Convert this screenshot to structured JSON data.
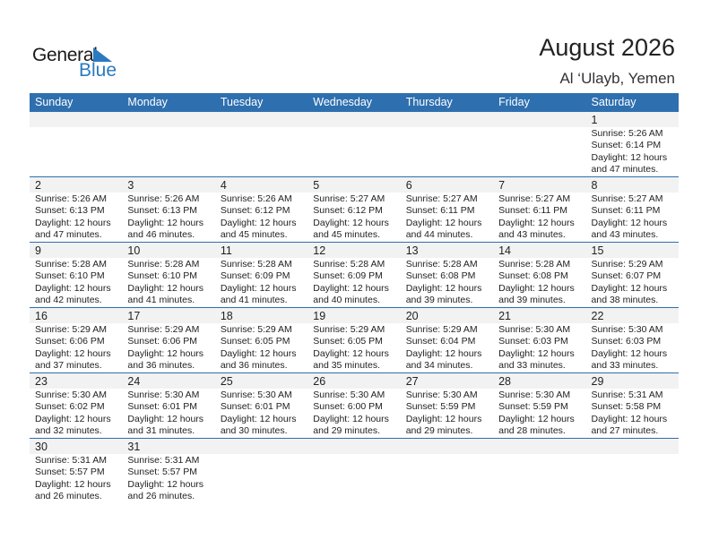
{
  "logo": {
    "text_general": "General",
    "text_blue": "Blue"
  },
  "header": {
    "title": "August 2026",
    "location": "Al ‘Ulayb, Yemen"
  },
  "colors": {
    "accent": "#2e6faf",
    "strip": "#f2f2f2"
  },
  "weekdays": [
    "Sunday",
    "Monday",
    "Tuesday",
    "Wednesday",
    "Thursday",
    "Friday",
    "Saturday"
  ],
  "first_weekday_index": 6,
  "days": [
    {
      "day": "1",
      "sunrise": "Sunrise: 5:26 AM",
      "sunset": "Sunset: 6:14 PM",
      "daylight1": "Daylight: 12 hours",
      "daylight2": "and 47 minutes."
    },
    {
      "day": "2",
      "sunrise": "Sunrise: 5:26 AM",
      "sunset": "Sunset: 6:13 PM",
      "daylight1": "Daylight: 12 hours",
      "daylight2": "and 47 minutes."
    },
    {
      "day": "3",
      "sunrise": "Sunrise: 5:26 AM",
      "sunset": "Sunset: 6:13 PM",
      "daylight1": "Daylight: 12 hours",
      "daylight2": "and 46 minutes."
    },
    {
      "day": "4",
      "sunrise": "Sunrise: 5:26 AM",
      "sunset": "Sunset: 6:12 PM",
      "daylight1": "Daylight: 12 hours",
      "daylight2": "and 45 minutes."
    },
    {
      "day": "5",
      "sunrise": "Sunrise: 5:27 AM",
      "sunset": "Sunset: 6:12 PM",
      "daylight1": "Daylight: 12 hours",
      "daylight2": "and 45 minutes."
    },
    {
      "day": "6",
      "sunrise": "Sunrise: 5:27 AM",
      "sunset": "Sunset: 6:11 PM",
      "daylight1": "Daylight: 12 hours",
      "daylight2": "and 44 minutes."
    },
    {
      "day": "7",
      "sunrise": "Sunrise: 5:27 AM",
      "sunset": "Sunset: 6:11 PM",
      "daylight1": "Daylight: 12 hours",
      "daylight2": "and 43 minutes."
    },
    {
      "day": "8",
      "sunrise": "Sunrise: 5:27 AM",
      "sunset": "Sunset: 6:11 PM",
      "daylight1": "Daylight: 12 hours",
      "daylight2": "and 43 minutes."
    },
    {
      "day": "9",
      "sunrise": "Sunrise: 5:28 AM",
      "sunset": "Sunset: 6:10 PM",
      "daylight1": "Daylight: 12 hours",
      "daylight2": "and 42 minutes."
    },
    {
      "day": "10",
      "sunrise": "Sunrise: 5:28 AM",
      "sunset": "Sunset: 6:10 PM",
      "daylight1": "Daylight: 12 hours",
      "daylight2": "and 41 minutes."
    },
    {
      "day": "11",
      "sunrise": "Sunrise: 5:28 AM",
      "sunset": "Sunset: 6:09 PM",
      "daylight1": "Daylight: 12 hours",
      "daylight2": "and 41 minutes."
    },
    {
      "day": "12",
      "sunrise": "Sunrise: 5:28 AM",
      "sunset": "Sunset: 6:09 PM",
      "daylight1": "Daylight: 12 hours",
      "daylight2": "and 40 minutes."
    },
    {
      "day": "13",
      "sunrise": "Sunrise: 5:28 AM",
      "sunset": "Sunset: 6:08 PM",
      "daylight1": "Daylight: 12 hours",
      "daylight2": "and 39 minutes."
    },
    {
      "day": "14",
      "sunrise": "Sunrise: 5:28 AM",
      "sunset": "Sunset: 6:08 PM",
      "daylight1": "Daylight: 12 hours",
      "daylight2": "and 39 minutes."
    },
    {
      "day": "15",
      "sunrise": "Sunrise: 5:29 AM",
      "sunset": "Sunset: 6:07 PM",
      "daylight1": "Daylight: 12 hours",
      "daylight2": "and 38 minutes."
    },
    {
      "day": "16",
      "sunrise": "Sunrise: 5:29 AM",
      "sunset": "Sunset: 6:06 PM",
      "daylight1": "Daylight: 12 hours",
      "daylight2": "and 37 minutes."
    },
    {
      "day": "17",
      "sunrise": "Sunrise: 5:29 AM",
      "sunset": "Sunset: 6:06 PM",
      "daylight1": "Daylight: 12 hours",
      "daylight2": "and 36 minutes."
    },
    {
      "day": "18",
      "sunrise": "Sunrise: 5:29 AM",
      "sunset": "Sunset: 6:05 PM",
      "daylight1": "Daylight: 12 hours",
      "daylight2": "and 36 minutes."
    },
    {
      "day": "19",
      "sunrise": "Sunrise: 5:29 AM",
      "sunset": "Sunset: 6:05 PM",
      "daylight1": "Daylight: 12 hours",
      "daylight2": "and 35 minutes."
    },
    {
      "day": "20",
      "sunrise": "Sunrise: 5:29 AM",
      "sunset": "Sunset: 6:04 PM",
      "daylight1": "Daylight: 12 hours",
      "daylight2": "and 34 minutes."
    },
    {
      "day": "21",
      "sunrise": "Sunrise: 5:30 AM",
      "sunset": "Sunset: 6:03 PM",
      "daylight1": "Daylight: 12 hours",
      "daylight2": "and 33 minutes."
    },
    {
      "day": "22",
      "sunrise": "Sunrise: 5:30 AM",
      "sunset": "Sunset: 6:03 PM",
      "daylight1": "Daylight: 12 hours",
      "daylight2": "and 33 minutes."
    },
    {
      "day": "23",
      "sunrise": "Sunrise: 5:30 AM",
      "sunset": "Sunset: 6:02 PM",
      "daylight1": "Daylight: 12 hours",
      "daylight2": "and 32 minutes."
    },
    {
      "day": "24",
      "sunrise": "Sunrise: 5:30 AM",
      "sunset": "Sunset: 6:01 PM",
      "daylight1": "Daylight: 12 hours",
      "daylight2": "and 31 minutes."
    },
    {
      "day": "25",
      "sunrise": "Sunrise: 5:30 AM",
      "sunset": "Sunset: 6:01 PM",
      "daylight1": "Daylight: 12 hours",
      "daylight2": "and 30 minutes."
    },
    {
      "day": "26",
      "sunrise": "Sunrise: 5:30 AM",
      "sunset": "Sunset: 6:00 PM",
      "daylight1": "Daylight: 12 hours",
      "daylight2": "and 29 minutes."
    },
    {
      "day": "27",
      "sunrise": "Sunrise: 5:30 AM",
      "sunset": "Sunset: 5:59 PM",
      "daylight1": "Daylight: 12 hours",
      "daylight2": "and 29 minutes."
    },
    {
      "day": "28",
      "sunrise": "Sunrise: 5:30 AM",
      "sunset": "Sunset: 5:59 PM",
      "daylight1": "Daylight: 12 hours",
      "daylight2": "and 28 minutes."
    },
    {
      "day": "29",
      "sunrise": "Sunrise: 5:31 AM",
      "sunset": "Sunset: 5:58 PM",
      "daylight1": "Daylight: 12 hours",
      "daylight2": "and 27 minutes."
    },
    {
      "day": "30",
      "sunrise": "Sunrise: 5:31 AM",
      "sunset": "Sunset: 5:57 PM",
      "daylight1": "Daylight: 12 hours",
      "daylight2": "and 26 minutes."
    },
    {
      "day": "31",
      "sunrise": "Sunrise: 5:31 AM",
      "sunset": "Sunset: 5:57 PM",
      "daylight1": "Daylight: 12 hours",
      "daylight2": "and 26 minutes."
    }
  ]
}
